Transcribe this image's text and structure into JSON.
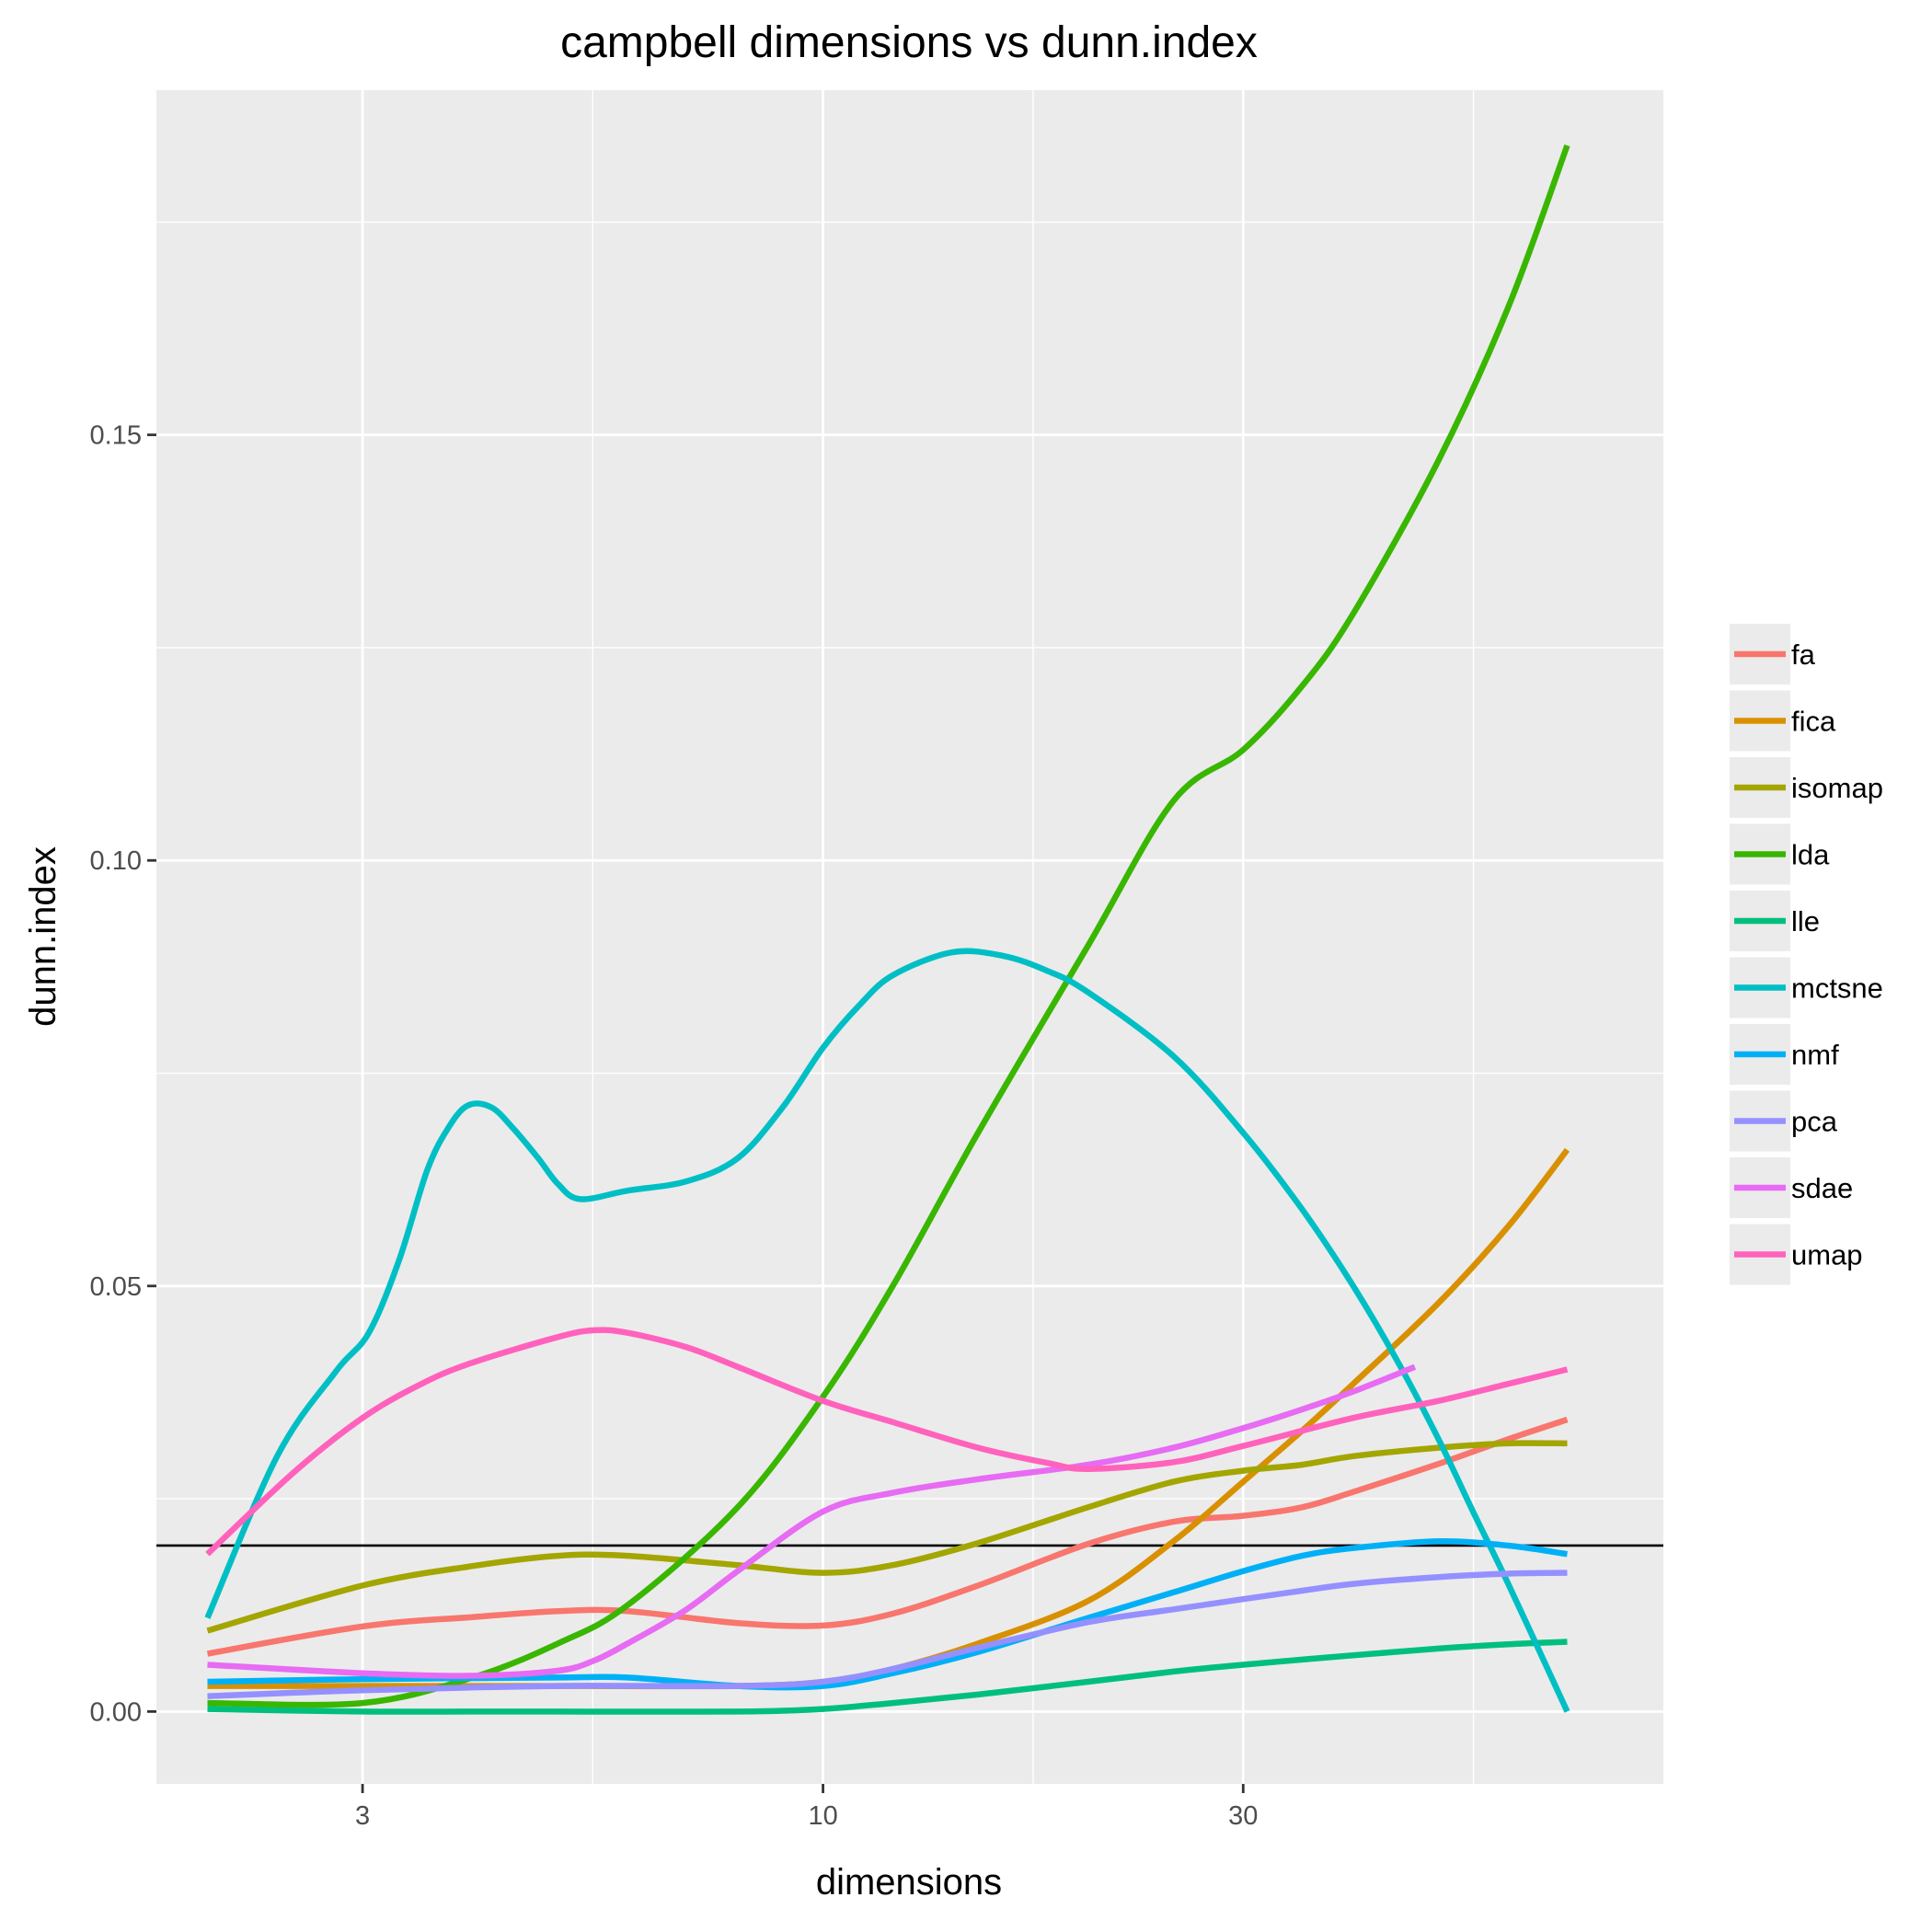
{
  "chart_data": {
    "type": "line",
    "title": "campbell dimensions vs dunn.index",
    "xlabel": "dimensions",
    "ylabel": "dunn.index",
    "x_scale": "log10",
    "xlim": [
      1.75,
      90
    ],
    "ylim": [
      -0.0085,
      0.1905
    ],
    "x_ticks": [
      3,
      10,
      30
    ],
    "x_tick_labels": [
      "3",
      "10",
      "30"
    ],
    "y_ticks": [
      0.0,
      0.05,
      0.1,
      0.15
    ],
    "y_tick_labels": [
      "0.00",
      "0.05",
      "0.10",
      "0.15"
    ],
    "grid": true,
    "legend_position": "right",
    "reference_line": {
      "y": 0.0195,
      "color": "#000000"
    },
    "series": [
      {
        "name": "fa",
        "color": "#F8766D",
        "points": [
          [
            2,
            0.0068
          ],
          [
            3,
            0.01
          ],
          [
            4,
            0.0111
          ],
          [
            5,
            0.0118
          ],
          [
            6,
            0.0118
          ],
          [
            8,
            0.0104
          ],
          [
            10,
            0.0101
          ],
          [
            12,
            0.0115
          ],
          [
            15,
            0.0148
          ],
          [
            20,
            0.0197
          ],
          [
            25,
            0.0223
          ],
          [
            30,
            0.023
          ],
          [
            35,
            0.024
          ],
          [
            40,
            0.0258
          ],
          [
            50,
            0.0291
          ],
          [
            60,
            0.032
          ],
          [
            70,
            0.0343
          ]
        ]
      },
      {
        "name": "fica",
        "color": "#D89000",
        "points": [
          [
            2,
            0.003
          ],
          [
            3,
            0.003
          ],
          [
            5,
            0.003
          ],
          [
            8,
            0.003
          ],
          [
            10,
            0.0035
          ],
          [
            12,
            0.005
          ],
          [
            15,
            0.008
          ],
          [
            20,
            0.013
          ],
          [
            25,
            0.02
          ],
          [
            30,
            0.027
          ],
          [
            35,
            0.033
          ],
          [
            40,
            0.0385
          ],
          [
            50,
            0.048
          ],
          [
            60,
            0.057
          ],
          [
            70,
            0.066
          ]
        ]
      },
      {
        "name": "isomap",
        "color": "#A3A500",
        "points": [
          [
            2,
            0.0095
          ],
          [
            3,
            0.0148
          ],
          [
            4,
            0.0171
          ],
          [
            5,
            0.0183
          ],
          [
            6,
            0.0183
          ],
          [
            8,
            0.0172
          ],
          [
            10,
            0.0163
          ],
          [
            12,
            0.0172
          ],
          [
            15,
            0.0198
          ],
          [
            20,
            0.024
          ],
          [
            25,
            0.027
          ],
          [
            30,
            0.0283
          ],
          [
            35,
            0.029
          ],
          [
            40,
            0.03
          ],
          [
            50,
            0.031
          ],
          [
            60,
            0.0315
          ],
          [
            70,
            0.0315
          ]
        ]
      },
      {
        "name": "lda",
        "color": "#39B600",
        "points": [
          [
            2,
            0.001
          ],
          [
            3,
            0.001
          ],
          [
            4,
            0.004
          ],
          [
            5,
            0.008
          ],
          [
            6,
            0.0125
          ],
          [
            8,
            0.024
          ],
          [
            10,
            0.037
          ],
          [
            12,
            0.05
          ],
          [
            15,
            0.068
          ],
          [
            20,
            0.09
          ],
          [
            25,
            0.107
          ],
          [
            30,
            0.113
          ],
          [
            35,
            0.1205
          ],
          [
            40,
            0.129
          ],
          [
            50,
            0.147
          ],
          [
            60,
            0.165
          ],
          [
            70,
            0.184
          ]
        ]
      },
      {
        "name": "lle",
        "color": "#00BF7D",
        "points": [
          [
            2,
            0.0003
          ],
          [
            3,
            0.0
          ],
          [
            4,
            0.0
          ],
          [
            5,
            0.0
          ],
          [
            8,
            0.0
          ],
          [
            10,
            0.0003
          ],
          [
            12,
            0.001
          ],
          [
            15,
            0.002
          ],
          [
            20,
            0.0035
          ],
          [
            25,
            0.0047
          ],
          [
            30,
            0.0055
          ],
          [
            35,
            0.0061
          ],
          [
            40,
            0.0066
          ],
          [
            50,
            0.0074
          ],
          [
            60,
            0.0079
          ],
          [
            70,
            0.0082
          ]
        ]
      },
      {
        "name": "mctsne",
        "color": "#00BFC4",
        "points": [
          [
            2,
            0.011
          ],
          [
            2.4,
            0.03
          ],
          [
            2.8,
            0.04
          ],
          [
            3.05,
            0.0445
          ],
          [
            3.3,
            0.053
          ],
          [
            3.55,
            0.0635
          ],
          [
            3.75,
            0.0685
          ],
          [
            3.95,
            0.0712
          ],
          [
            4.2,
            0.071
          ],
          [
            4.45,
            0.0685
          ],
          [
            4.75,
            0.065
          ],
          [
            5.0,
            0.062
          ],
          [
            5.3,
            0.0602
          ],
          [
            6,
            0.0612
          ],
          [
            7,
            0.0623
          ],
          [
            8,
            0.065
          ],
          [
            9,
            0.071
          ],
          [
            10,
            0.078
          ],
          [
            11,
            0.083
          ],
          [
            12,
            0.0865
          ],
          [
            14,
            0.0892
          ],
          [
            16,
            0.0888
          ],
          [
            18,
            0.087
          ],
          [
            20,
            0.0845
          ],
          [
            25,
            0.077
          ],
          [
            30,
            0.068
          ],
          [
            35,
            0.059
          ],
          [
            40,
            0.05
          ],
          [
            45,
            0.041
          ],
          [
            50,
            0.032
          ],
          [
            55,
            0.023
          ],
          [
            60,
            0.015
          ],
          [
            70,
            0.0
          ]
        ]
      },
      {
        "name": "nmf",
        "color": "#00B0F6",
        "points": [
          [
            2,
            0.0035
          ],
          [
            3,
            0.0038
          ],
          [
            5,
            0.004
          ],
          [
            6,
            0.004
          ],
          [
            8,
            0.003
          ],
          [
            10,
            0.003
          ],
          [
            12,
            0.0045
          ],
          [
            15,
            0.007
          ],
          [
            20,
            0.011
          ],
          [
            25,
            0.014
          ],
          [
            30,
            0.0165
          ],
          [
            35,
            0.0183
          ],
          [
            40,
            0.0192
          ],
          [
            50,
            0.02
          ],
          [
            60,
            0.0195
          ],
          [
            70,
            0.0185
          ]
        ]
      },
      {
        "name": "pca",
        "color": "#9590FF",
        "points": [
          [
            2,
            0.0018
          ],
          [
            3,
            0.0025
          ],
          [
            5,
            0.003
          ],
          [
            8,
            0.003
          ],
          [
            10,
            0.0035
          ],
          [
            12,
            0.005
          ],
          [
            15,
            0.0075
          ],
          [
            20,
            0.0105
          ],
          [
            25,
            0.012
          ],
          [
            30,
            0.0132
          ],
          [
            35,
            0.0142
          ],
          [
            40,
            0.015
          ],
          [
            50,
            0.0158
          ],
          [
            60,
            0.0162
          ],
          [
            70,
            0.0163
          ]
        ]
      },
      {
        "name": "sdae",
        "color": "#E76BF3",
        "points": [
          [
            2,
            0.0055
          ],
          [
            3,
            0.0045
          ],
          [
            4,
            0.0042
          ],
          [
            5,
            0.0048
          ],
          [
            5.5,
            0.006
          ],
          [
            6,
            0.008
          ],
          [
            7,
            0.012
          ],
          [
            8,
            0.0165
          ],
          [
            10,
            0.0235
          ],
          [
            12,
            0.0257
          ],
          [
            15,
            0.0273
          ],
          [
            20,
            0.029
          ],
          [
            25,
            0.031
          ],
          [
            30,
            0.0333
          ],
          [
            35,
            0.0355
          ],
          [
            40,
            0.0376
          ],
          [
            47,
            0.0405
          ]
        ]
      },
      {
        "name": "umap",
        "color": "#FF62BC",
        "points": [
          [
            2,
            0.0185
          ],
          [
            2.5,
            0.028
          ],
          [
            3,
            0.0345
          ],
          [
            3.5,
            0.0385
          ],
          [
            4,
            0.041
          ],
          [
            5,
            0.044
          ],
          [
            5.5,
            0.0448
          ],
          [
            6,
            0.0445
          ],
          [
            7,
            0.0428
          ],
          [
            8,
            0.0405
          ],
          [
            10,
            0.0365
          ],
          [
            12,
            0.034
          ],
          [
            15,
            0.031
          ],
          [
            18,
            0.0292
          ],
          [
            20,
            0.0285
          ],
          [
            25,
            0.0293
          ],
          [
            30,
            0.0312
          ],
          [
            40,
            0.0345
          ],
          [
            50,
            0.0365
          ],
          [
            60,
            0.0385
          ],
          [
            70,
            0.0402
          ]
        ]
      }
    ]
  }
}
